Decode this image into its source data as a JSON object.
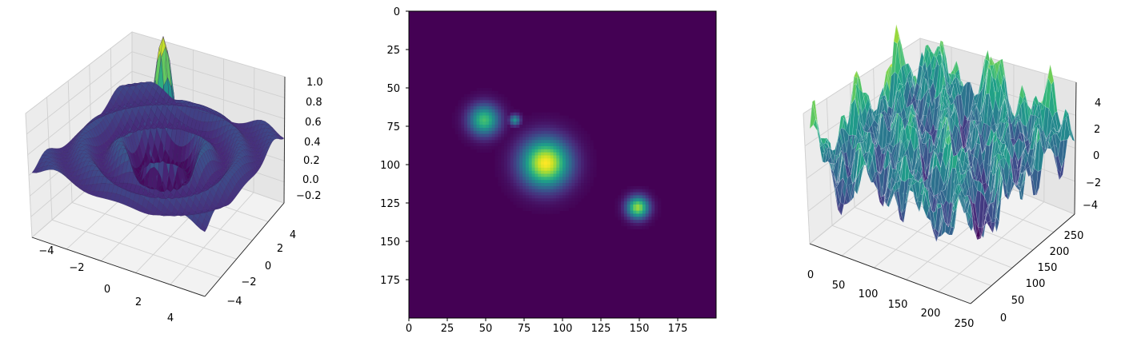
{
  "chart_data": [
    {
      "type": "surface3d",
      "title": "",
      "z_function": "sin(r)/r, r = 3.3*sqrt(x^2+y^2)",
      "x_range": [
        -5,
        5
      ],
      "y_range": [
        -5,
        5
      ],
      "z_range": [
        -0.22,
        1.0
      ],
      "x_ticks": [
        "−4",
        "−2",
        "0",
        "2",
        "4"
      ],
      "y_ticks": [
        "−4",
        "−2",
        "0",
        "2",
        "4"
      ],
      "z_ticks": [
        "−0.2",
        "0.0",
        "0.2",
        "0.4",
        "0.6",
        "0.8",
        "1.0"
      ],
      "colormap": "viridis"
    },
    {
      "type": "heatmap",
      "title": "",
      "size": [
        200,
        200
      ],
      "x_ticks": [
        "0",
        "25",
        "50",
        "75",
        "100",
        "125",
        "150",
        "175"
      ],
      "y_ticks": [
        "0",
        "25",
        "50",
        "75",
        "100",
        "125",
        "150",
        "175"
      ],
      "blobs": [
        {
          "x": 89,
          "y": 99,
          "sigma": 11,
          "amplitude": 1.0
        },
        {
          "x": 49,
          "y": 71,
          "sigma": 7,
          "amplitude": 0.7
        },
        {
          "x": 149,
          "y": 128,
          "sigma": 5,
          "amplitude": 0.85
        },
        {
          "x": 69,
          "y": 71,
          "sigma": 2.5,
          "amplitude": 0.5
        }
      ],
      "colormap": "viridis"
    },
    {
      "type": "surface3d",
      "title": "",
      "description_values": "random smoothed terrain",
      "x_range": [
        0,
        256
      ],
      "y_range": [
        0,
        256
      ],
      "z_range": [
        -4.5,
        5
      ],
      "x_ticks": [
        "0",
        "50",
        "100",
        "150",
        "200",
        "250"
      ],
      "y_ticks": [
        "0",
        "50",
        "100",
        "150",
        "200",
        "250"
      ],
      "z_ticks": [
        "−4",
        "−2",
        "0",
        "2",
        "4"
      ],
      "colormap": "viridis"
    }
  ]
}
